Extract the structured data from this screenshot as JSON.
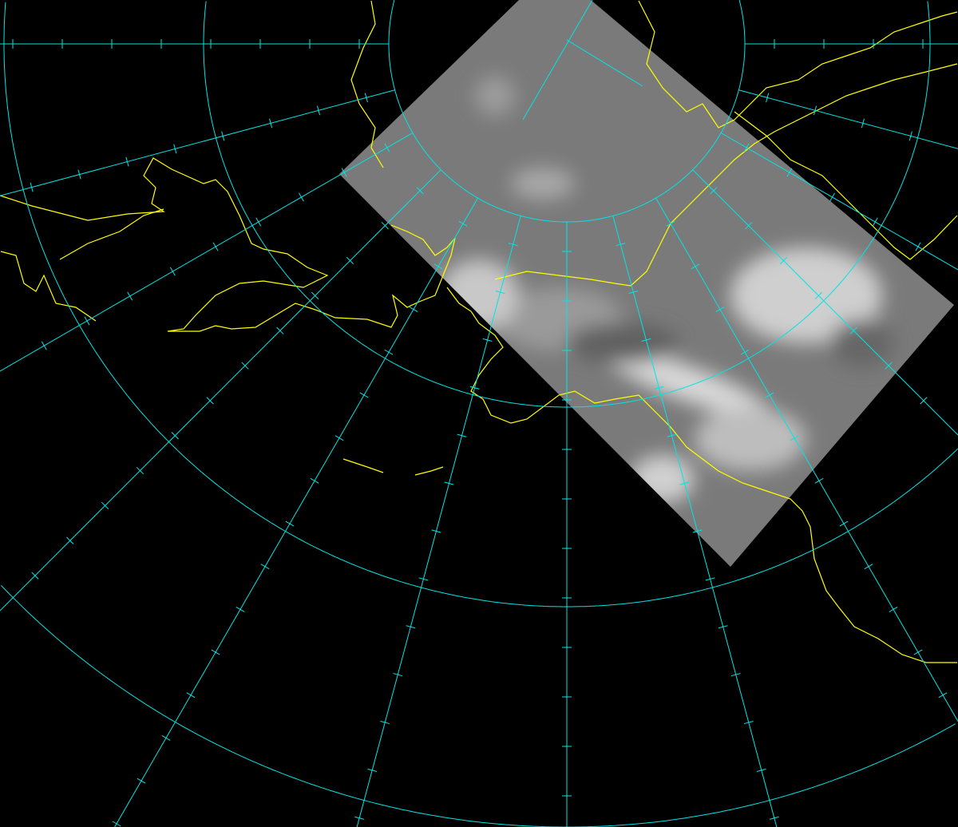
{
  "map": {
    "projection": "polar-stereographic",
    "colors": {
      "background": "#000000",
      "graticule": "#00e5e5",
      "coastline": "#ffff00",
      "satellite_base": "#7a7a7a",
      "cloud": "#d8d8d8"
    },
    "graticule": {
      "meridian_spacing_deg": 15,
      "latitude_circles": 4
    },
    "layers": [
      "satellite-image",
      "coastlines",
      "graticule"
    ]
  }
}
